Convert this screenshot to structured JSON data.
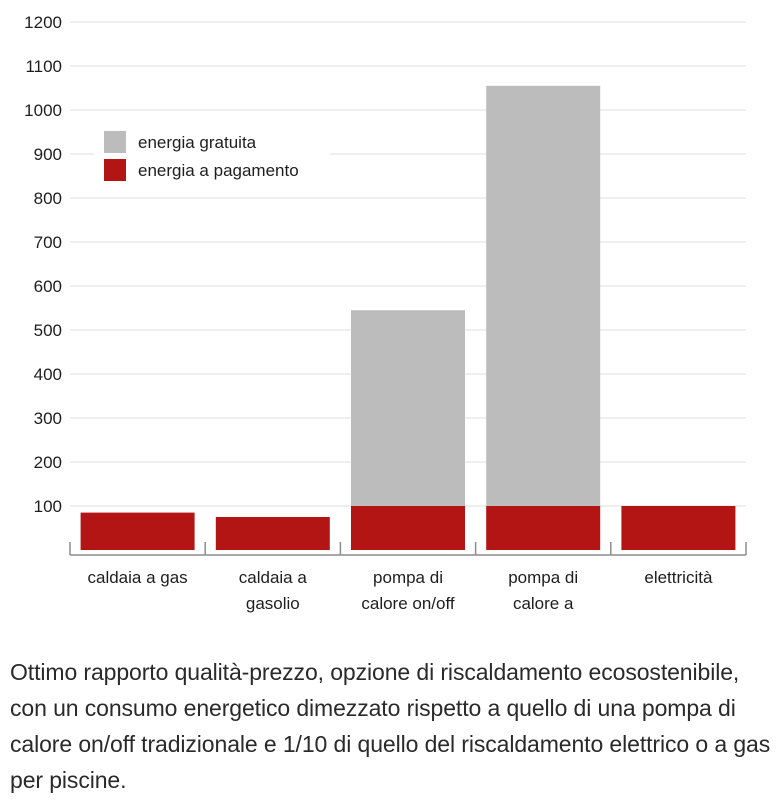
{
  "chart_data": {
    "type": "bar",
    "stacked": true,
    "title": "",
    "xlabel": "",
    "ylabel": "",
    "ylim": [
      0,
      1200
    ],
    "yticks": [
      100,
      200,
      300,
      400,
      500,
      600,
      700,
      800,
      900,
      1000,
      1100,
      1200
    ],
    "grid": true,
    "legend_position": "top-left",
    "categories": [
      [
        "caldaia a gas"
      ],
      [
        "caldaia a",
        "gasolio"
      ],
      [
        "pompa di",
        "calore on/off"
      ],
      [
        "pompa di",
        "calore a"
      ],
      [
        "elettricità"
      ]
    ],
    "series": [
      {
        "name": "energia a pagamento",
        "color": "#b31515",
        "values": [
          85,
          75,
          100,
          100,
          100
        ]
      },
      {
        "name": "energia gratuita",
        "color": "#bdbcbc",
        "values": [
          0,
          0,
          445,
          955,
          0
        ]
      }
    ],
    "legend": [
      {
        "name": "energia gratuita",
        "color": "#bdbcbc"
      },
      {
        "name": "energia a pagamento",
        "color": "#b31515"
      }
    ]
  },
  "caption": "Ottimo rapporto qualità-prezzo, opzione di riscaldamento ecosostenibile, con un consumo energetico dimezzato rispetto a quello di una pompa di calore on/off tradizionale e 1/10 di quello del riscaldamento elettrico o a gas per piscine."
}
